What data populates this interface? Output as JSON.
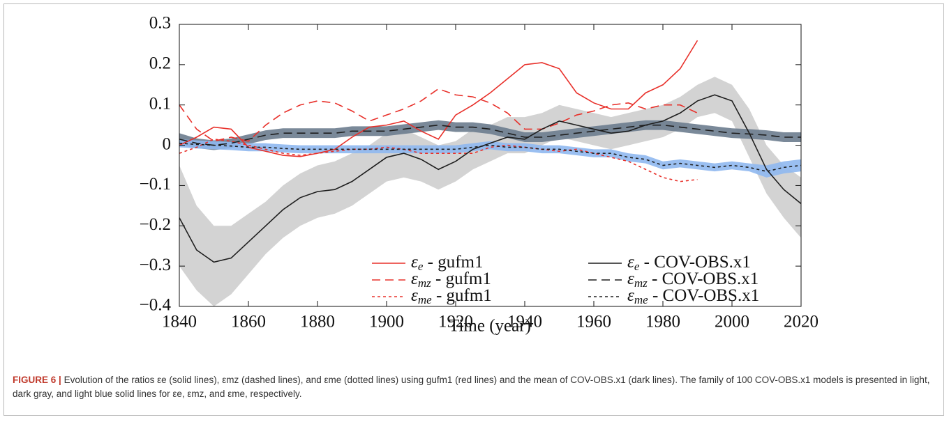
{
  "chart_data": {
    "type": "line",
    "xlabel": "Time (year)",
    "x": [
      1840,
      1845,
      1850,
      1855,
      1860,
      1865,
      1870,
      1875,
      1880,
      1885,
      1890,
      1895,
      1900,
      1905,
      1910,
      1915,
      1920,
      1925,
      1930,
      1935,
      1940,
      1945,
      1950,
      1955,
      1960,
      1965,
      1970,
      1975,
      1980,
      1985,
      1990,
      1995,
      2000,
      2005,
      2010,
      2015,
      2020
    ],
    "xlim": [
      1840,
      2020
    ],
    "xticks": [
      1840,
      1860,
      1880,
      1900,
      1920,
      1940,
      1960,
      1980,
      2000,
      2020
    ],
    "ylim": [
      -0.4,
      0.3
    ],
    "yticks": [
      {
        "value": -0.4,
        "label": "−0.4"
      },
      {
        "value": -0.3,
        "label": "−0.3"
      },
      {
        "value": -0.2,
        "label": "−0.2"
      },
      {
        "value": -0.1,
        "label": "−0.1"
      },
      0,
      0.1,
      0.2,
      0.3
    ],
    "bands": [
      {
        "color": "#c4c4c4",
        "lower": [
          -0.3,
          -0.36,
          -0.4,
          -0.37,
          -0.32,
          -0.27,
          -0.23,
          -0.2,
          -0.18,
          -0.17,
          -0.15,
          -0.12,
          -0.09,
          -0.08,
          -0.09,
          -0.11,
          -0.09,
          -0.06,
          -0.04,
          -0.02,
          -0.02,
          0.0,
          0.02,
          0.01,
          0.0,
          -0.01,
          0.0,
          0.01,
          0.02,
          0.04,
          0.07,
          0.08,
          0.06,
          -0.03,
          -0.12,
          -0.18,
          -0.23
        ],
        "upper": [
          -0.05,
          -0.15,
          -0.2,
          -0.2,
          -0.17,
          -0.14,
          -0.1,
          -0.07,
          -0.05,
          -0.04,
          -0.02,
          0.0,
          0.03,
          0.04,
          0.02,
          0.0,
          0.01,
          0.04,
          0.05,
          0.07,
          0.07,
          0.08,
          0.1,
          0.09,
          0.08,
          0.07,
          0.08,
          0.09,
          0.1,
          0.12,
          0.15,
          0.17,
          0.15,
          0.09,
          0.0,
          -0.05,
          -0.08
        ]
      },
      {
        "color": "#6b7c8e",
        "lower": [
          0.0,
          -0.007,
          -0.012,
          -0.007,
          0.003,
          0.013,
          0.018,
          0.018,
          0.018,
          0.018,
          0.023,
          0.023,
          0.023,
          0.028,
          0.033,
          0.038,
          0.033,
          0.033,
          0.028,
          0.018,
          0.008,
          0.008,
          0.013,
          0.018,
          0.023,
          0.028,
          0.033,
          0.038,
          0.038,
          0.033,
          0.028,
          0.023,
          0.018,
          0.016,
          0.013,
          0.008,
          0.008
        ],
        "upper": [
          0.03,
          0.017,
          0.012,
          0.017,
          0.027,
          0.037,
          0.042,
          0.042,
          0.042,
          0.042,
          0.047,
          0.047,
          0.047,
          0.052,
          0.057,
          0.062,
          0.057,
          0.057,
          0.052,
          0.042,
          0.032,
          0.032,
          0.037,
          0.042,
          0.047,
          0.052,
          0.057,
          0.062,
          0.062,
          0.057,
          0.052,
          0.047,
          0.042,
          0.04,
          0.037,
          0.032,
          0.032
        ]
      },
      {
        "color": "#8fb8f0",
        "lower": [
          -0.005,
          -0.008,
          -0.01,
          -0.012,
          -0.015,
          -0.015,
          -0.018,
          -0.02,
          -0.02,
          -0.02,
          -0.02,
          -0.02,
          -0.02,
          -0.02,
          -0.02,
          -0.02,
          -0.02,
          -0.015,
          -0.01,
          -0.015,
          -0.015,
          -0.02,
          -0.02,
          -0.025,
          -0.03,
          -0.03,
          -0.04,
          -0.045,
          -0.06,
          -0.055,
          -0.06,
          -0.065,
          -0.06,
          -0.065,
          -0.08,
          -0.07,
          -0.065
        ],
        "upper": [
          0.015,
          0.012,
          0.01,
          0.008,
          0.005,
          0.005,
          0.002,
          0.0,
          0.0,
          0.0,
          0.0,
          0.0,
          0.0,
          0.0,
          0.0,
          0.0,
          0.0,
          0.005,
          0.01,
          0.005,
          0.005,
          0.0,
          0.0,
          -0.005,
          -0.01,
          -0.01,
          -0.02,
          -0.025,
          -0.04,
          -0.035,
          -0.04,
          -0.045,
          -0.04,
          -0.045,
          -0.05,
          -0.04,
          -0.035
        ]
      }
    ],
    "series": [
      {
        "name": "εe - gufm1",
        "color": "#e8302a",
        "dash": "solid",
        "values": [
          0.0,
          0.02,
          0.045,
          0.04,
          -0.005,
          -0.015,
          -0.025,
          -0.028,
          -0.02,
          -0.01,
          0.02,
          0.045,
          0.05,
          0.06,
          0.035,
          0.015,
          0.075,
          0.1,
          0.13,
          0.165,
          0.2,
          0.205,
          0.19,
          0.13,
          0.105,
          0.09,
          0.09,
          0.13,
          0.15,
          0.19,
          0.26,
          null,
          null,
          null,
          null,
          null,
          null
        ]
      },
      {
        "name": "εmz - gufm1",
        "color": "#e8302a",
        "dash": "dashed",
        "values": [
          0.1,
          0.04,
          0.01,
          0.02,
          0.01,
          0.05,
          0.08,
          0.1,
          0.11,
          0.105,
          0.085,
          0.06,
          0.075,
          0.09,
          0.11,
          0.14,
          0.125,
          0.12,
          0.105,
          0.08,
          0.04,
          0.04,
          0.055,
          0.075,
          0.085,
          0.1,
          0.105,
          0.09,
          0.1,
          0.1,
          0.08,
          null,
          null,
          null,
          null,
          null,
          null
        ]
      },
      {
        "name": "εme - gufm1",
        "color": "#e8302a",
        "dash": "dotted",
        "values": [
          -0.02,
          -0.005,
          0.015,
          0.01,
          0.0,
          -0.01,
          -0.02,
          -0.025,
          -0.02,
          -0.015,
          -0.01,
          -0.01,
          -0.005,
          -0.01,
          -0.02,
          -0.02,
          -0.02,
          -0.02,
          -0.005,
          0.0,
          -0.005,
          -0.01,
          -0.015,
          -0.01,
          -0.02,
          -0.03,
          -0.04,
          -0.06,
          -0.08,
          -0.09,
          -0.085,
          null,
          null,
          null,
          null,
          null,
          null
        ]
      },
      {
        "name": "εe - COV-OBS.x1",
        "color": "#1e1e1e",
        "dash": "solid",
        "values": [
          -0.18,
          -0.26,
          -0.29,
          -0.28,
          -0.24,
          -0.2,
          -0.16,
          -0.13,
          -0.115,
          -0.11,
          -0.09,
          -0.06,
          -0.03,
          -0.02,
          -0.035,
          -0.06,
          -0.04,
          -0.01,
          0.005,
          0.02,
          0.015,
          0.04,
          0.06,
          0.05,
          0.04,
          0.03,
          0.035,
          0.05,
          0.06,
          0.08,
          0.11,
          0.125,
          0.11,
          0.03,
          -0.06,
          -0.11,
          -0.145
        ]
      },
      {
        "name": "εmz - COV-OBS.x1",
        "color": "#1e1e1e",
        "dash": "dashed",
        "values": [
          0.015,
          0.005,
          0.0,
          0.005,
          0.015,
          0.025,
          0.03,
          0.03,
          0.03,
          0.03,
          0.035,
          0.035,
          0.035,
          0.04,
          0.045,
          0.05,
          0.045,
          0.045,
          0.04,
          0.03,
          0.02,
          0.02,
          0.025,
          0.03,
          0.035,
          0.04,
          0.045,
          0.05,
          0.05,
          0.045,
          0.04,
          0.035,
          0.03,
          0.028,
          0.025,
          0.02,
          0.02
        ]
      },
      {
        "name": "εme - COV-OBS.x1",
        "color": "#1e1e1e",
        "dash": "dotted",
        "values": [
          0.005,
          0.002,
          0.0,
          -0.002,
          -0.005,
          -0.005,
          -0.008,
          -0.01,
          -0.01,
          -0.01,
          -0.01,
          -0.01,
          -0.01,
          -0.01,
          -0.01,
          -0.01,
          -0.01,
          -0.005,
          0.0,
          -0.005,
          -0.005,
          -0.01,
          -0.01,
          -0.015,
          -0.02,
          -0.02,
          -0.03,
          -0.035,
          -0.05,
          -0.045,
          -0.05,
          -0.055,
          -0.05,
          -0.055,
          -0.065,
          -0.055,
          -0.05
        ]
      }
    ]
  },
  "caption": {
    "label": "FIGURE 6 |",
    "text": "Evolution of the ratios εe (solid lines), εmz (dashed lines), and εme (dotted lines) using gufm1 (red lines) and the mean of COV-OBS.x1 (dark lines). The family of 100 COV-OBS.x1 models is presented in light, dark gray, and light blue solid lines for εe, εmz, and εme, respectively."
  }
}
